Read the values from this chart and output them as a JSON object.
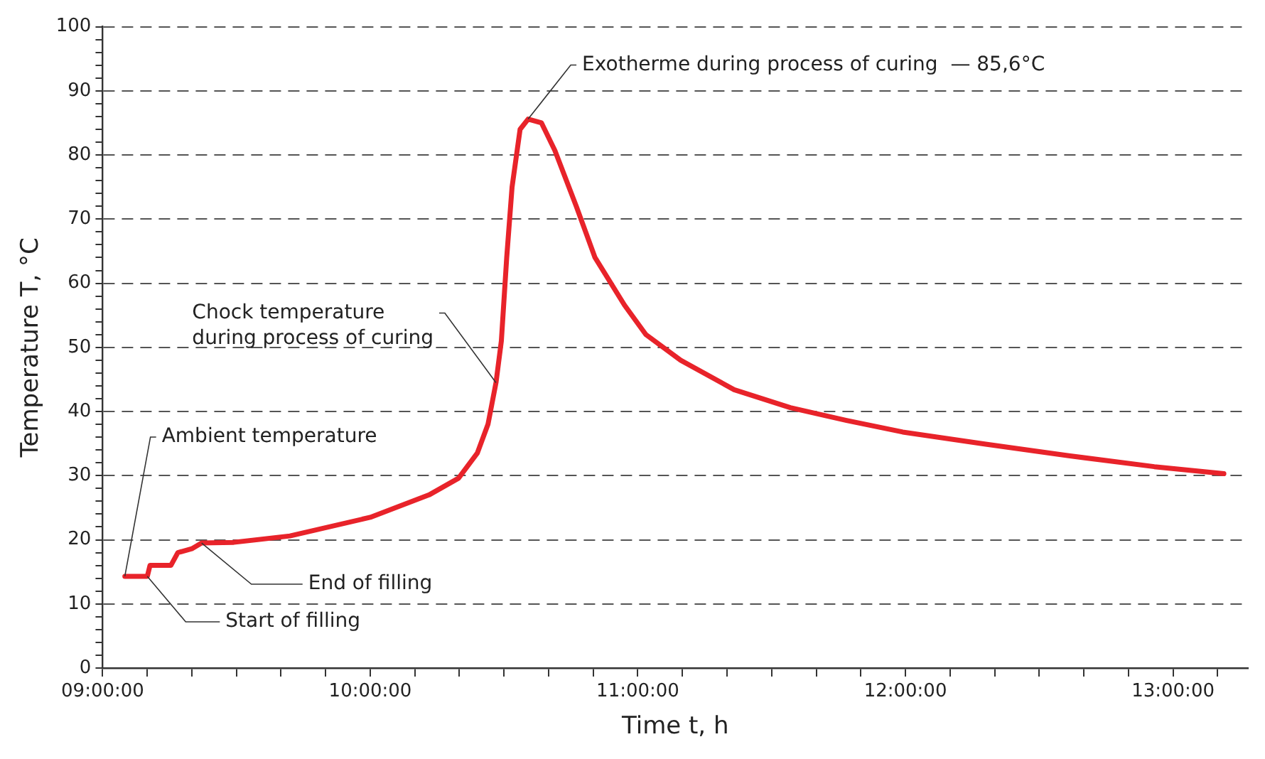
{
  "chart_data": {
    "type": "line",
    "xlabel": "Time t, h",
    "ylabel": "Temperature T, °C",
    "series": [
      {
        "color": "#e8232a",
        "x": [
          9.083,
          9.167,
          9.177,
          9.255,
          9.281,
          9.333,
          9.37,
          9.49,
          9.7,
          10.0,
          10.22,
          10.33,
          10.4,
          10.44,
          10.47,
          10.49,
          10.51,
          10.53,
          10.56,
          10.59,
          10.64,
          10.69,
          10.77,
          10.84,
          10.95,
          11.03,
          11.16,
          11.36,
          11.57,
          11.78,
          11.99,
          12.3,
          12.61,
          12.93,
          13.19
        ],
        "values": [
          14.3,
          14.3,
          16,
          16,
          18,
          18.6,
          19.5,
          19.6,
          20.6,
          23.5,
          27,
          29.6,
          33.5,
          38,
          44.5,
          51,
          64,
          75,
          84,
          85.6,
          85,
          80.7,
          72,
          64,
          56.6,
          52,
          48,
          43.4,
          40.6,
          38.6,
          36.8,
          34.9,
          33.1,
          31.4,
          30.3
        ]
      }
    ],
    "xlim": [
      9,
      13.28
    ],
    "xticks": [
      {
        "value": 9,
        "label": "09:00:00"
      },
      {
        "value": 9.1667,
        "label": null
      },
      {
        "value": 9.3333,
        "label": null
      },
      {
        "value": 9.5,
        "label": null
      },
      {
        "value": 9.6667,
        "label": null
      },
      {
        "value": 9.8333,
        "label": null
      },
      {
        "value": 10,
        "label": "10:00:00"
      },
      {
        "value": 10.1667,
        "label": null
      },
      {
        "value": 10.3333,
        "label": null
      },
      {
        "value": 10.5,
        "label": null
      },
      {
        "value": 10.6667,
        "label": null
      },
      {
        "value": 10.8333,
        "label": null
      },
      {
        "value": 11,
        "label": "11:00:00"
      },
      {
        "value": 11.1667,
        "label": null
      },
      {
        "value": 11.3333,
        "label": null
      },
      {
        "value": 11.5,
        "label": null
      },
      {
        "value": 11.6667,
        "label": null
      },
      {
        "value": 11.8333,
        "label": null
      },
      {
        "value": 12,
        "label": "12:00:00"
      },
      {
        "value": 12.1667,
        "label": null
      },
      {
        "value": 12.3333,
        "label": null
      },
      {
        "value": 12.5,
        "label": null
      },
      {
        "value": 12.6667,
        "label": null
      },
      {
        "value": 12.8333,
        "label": null
      },
      {
        "value": 13,
        "label": "13:00:00"
      },
      {
        "value": 13.1667,
        "label": null
      }
    ],
    "ylim": [
      0,
      100
    ],
    "yticks": [
      0,
      {
        "value": 2,
        "label": null
      },
      {
        "value": 4,
        "label": null
      },
      {
        "value": 6,
        "label": null
      },
      {
        "value": 8,
        "label": null
      },
      10,
      {
        "value": 12,
        "label": null
      },
      {
        "value": 14,
        "label": null
      },
      {
        "value": 16,
        "label": null
      },
      {
        "value": 18,
        "label": null
      },
      20,
      {
        "value": 22,
        "label": null
      },
      {
        "value": 24,
        "label": null
      },
      {
        "value": 26,
        "label": null
      },
      {
        "value": 28,
        "label": null
      },
      30,
      {
        "value": 32,
        "label": null
      },
      {
        "value": 34,
        "label": null
      },
      {
        "value": 36,
        "label": null
      },
      {
        "value": 38,
        "label": null
      },
      40,
      {
        "value": 42,
        "label": null
      },
      {
        "value": 44,
        "label": null
      },
      {
        "value": 46,
        "label": null
      },
      {
        "value": 48,
        "label": null
      },
      50,
      {
        "value": 52,
        "label": null
      },
      {
        "value": 54,
        "label": null
      },
      {
        "value": 56,
        "label": null
      },
      {
        "value": 58,
        "label": null
      },
      60,
      {
        "value": 62,
        "label": null
      },
      {
        "value": 64,
        "label": null
      },
      {
        "value": 66,
        "label": null
      },
      {
        "value": 68,
        "label": null
      },
      70,
      {
        "value": 72,
        "label": null
      },
      {
        "value": 74,
        "label": null
      },
      {
        "value": 76,
        "label": null
      },
      {
        "value": 78,
        "label": null
      },
      80,
      {
        "value": 82,
        "label": null
      },
      {
        "value": 84,
        "label": null
      },
      {
        "value": 86,
        "label": null
      },
      {
        "value": 88,
        "label": null
      },
      90,
      {
        "value": 92,
        "label": null
      },
      {
        "value": 94,
        "label": null
      },
      {
        "value": 96,
        "label": null
      },
      {
        "value": 98,
        "label": null
      },
      100
    ],
    "grid": "y",
    "legend": false,
    "marker": "none",
    "line_style": "solid",
    "annotations": [
      {
        "text": "Exotherme during process of curing  — 85,6°C",
        "x": 10.59,
        "y": 85.6
      },
      {
        "text": "Chock temperature\nduring process of curing",
        "x": 10.47,
        "y": 44.5
      },
      {
        "text": "Ambient temperature",
        "x": 9.083,
        "y": 14.3
      },
      {
        "text": "End of filling",
        "x": 9.37,
        "y": 19.5
      },
      {
        "text": "Start of filling",
        "x": 9.167,
        "y": 14.3
      }
    ]
  }
}
